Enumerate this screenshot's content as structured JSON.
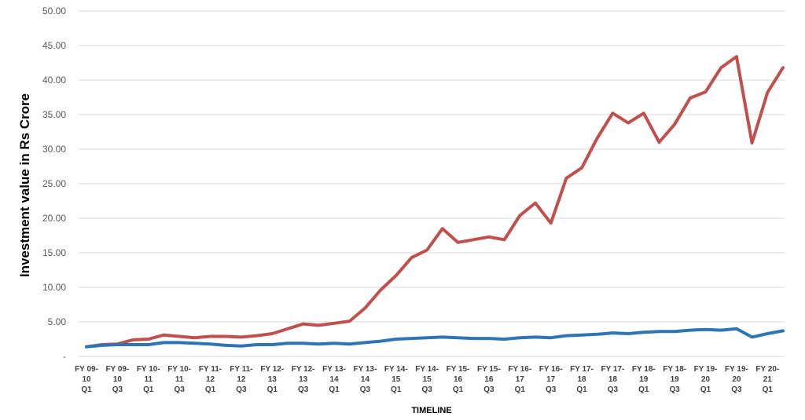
{
  "chart_data": {
    "type": "line",
    "xlabel": "TIMELINE",
    "ylabel": "Investment value in Rs Crore",
    "ylim": [
      0,
      50
    ],
    "yticks": [
      "-",
      "5.00",
      "10.00",
      "15.00",
      "20.00",
      "25.00",
      "30.00",
      "35.00",
      "40.00",
      "45.00",
      "50.00"
    ],
    "grid": true,
    "legend": "none",
    "x_tick_labels": [
      [
        "FY 09-",
        "10",
        "Q1"
      ],
      [
        "FY 09-",
        "10",
        "Q3"
      ],
      [
        "FY 10-",
        "11",
        "Q1"
      ],
      [
        "FY 10-",
        "11",
        "Q3"
      ],
      [
        "FY 11-",
        "12",
        "Q1"
      ],
      [
        "FY 11-",
        "12",
        "Q3"
      ],
      [
        "FY 12-",
        "13",
        "Q1"
      ],
      [
        "FY 12-",
        "13",
        "Q3"
      ],
      [
        "FY 13-",
        "14",
        "Q1"
      ],
      [
        "FY 13-",
        "14",
        "Q3"
      ],
      [
        "FY 14-",
        "15",
        "Q1"
      ],
      [
        "FY 14-",
        "15",
        "Q3"
      ],
      [
        "FY 15-",
        "16",
        "Q1"
      ],
      [
        "FY 15-",
        "16",
        "Q3"
      ],
      [
        "FY 16-",
        "17",
        "Q1"
      ],
      [
        "FY 16-",
        "17",
        "Q3"
      ],
      [
        "FY 17-",
        "18",
        "Q1"
      ],
      [
        "FY 17-",
        "18",
        "Q3"
      ],
      [
        "FY 18-",
        "19",
        "Q1"
      ],
      [
        "FY 18-",
        "19",
        "Q3"
      ],
      [
        "FY 19-",
        "20",
        "Q1"
      ],
      [
        "FY 19-",
        "20",
        "Q3"
      ],
      [
        "FY 20-",
        "21",
        "Q1"
      ]
    ],
    "series": [
      {
        "color": "#c0504d",
        "values": [
          1.4,
          1.7,
          1.8,
          2.4,
          2.5,
          3.1,
          2.9,
          2.7,
          2.9,
          2.9,
          2.8,
          3.0,
          3.3,
          4.0,
          4.7,
          4.5,
          4.8,
          5.1,
          7.0,
          9.6,
          11.7,
          14.3,
          15.4,
          18.5,
          16.5,
          16.9,
          17.3,
          16.9,
          20.4,
          22.2,
          19.3,
          25.8,
          27.3,
          31.6,
          35.2,
          33.8,
          35.2,
          31.0,
          33.6,
          37.4,
          38.3,
          41.8,
          43.4,
          30.9,
          38.2,
          41.8
        ]
      },
      {
        "color": "#2e75b6",
        "values": [
          1.4,
          1.6,
          1.7,
          1.7,
          1.7,
          2.0,
          2.0,
          1.9,
          1.8,
          1.6,
          1.5,
          1.7,
          1.7,
          1.9,
          1.9,
          1.8,
          1.9,
          1.8,
          2.0,
          2.2,
          2.5,
          2.6,
          2.7,
          2.8,
          2.7,
          2.6,
          2.6,
          2.5,
          2.7,
          2.8,
          2.7,
          3.0,
          3.1,
          3.2,
          3.4,
          3.3,
          3.5,
          3.6,
          3.6,
          3.8,
          3.9,
          3.8,
          4.0,
          2.8,
          3.3,
          3.7
        ]
      }
    ]
  }
}
